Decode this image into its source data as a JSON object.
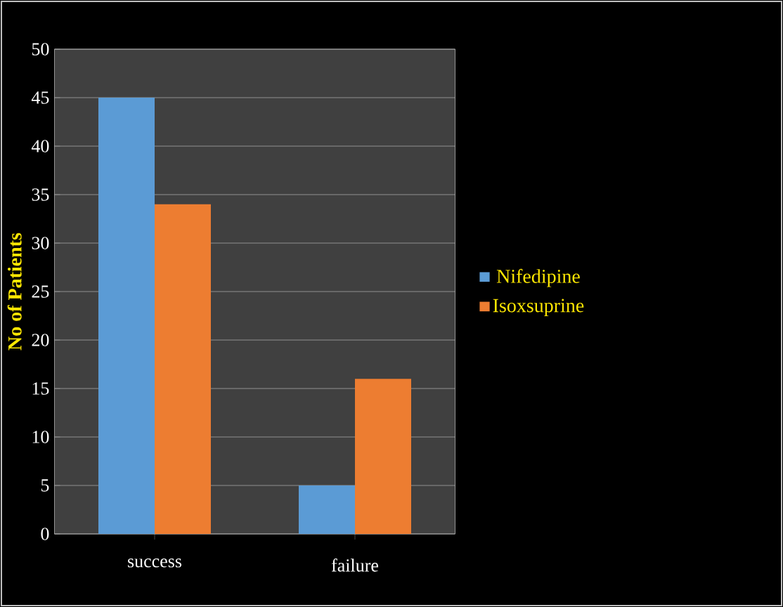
{
  "chart_data": {
    "type": "bar",
    "ylabel": "No of Patients",
    "categories": [
      "success",
      "failure"
    ],
    "series": [
      {
        "name": "Nifedipine",
        "color": "#5b9bd5",
        "values": [
          45,
          5
        ]
      },
      {
        "name": "Isoxsuprine",
        "color": "#ed7d31",
        "values": [
          34,
          16
        ]
      }
    ],
    "ylim": [
      0,
      50
    ],
    "yticks": [
      0,
      5,
      10,
      15,
      20,
      25,
      30,
      35,
      40,
      45,
      50
    ],
    "grid": "y",
    "legend": "right"
  }
}
